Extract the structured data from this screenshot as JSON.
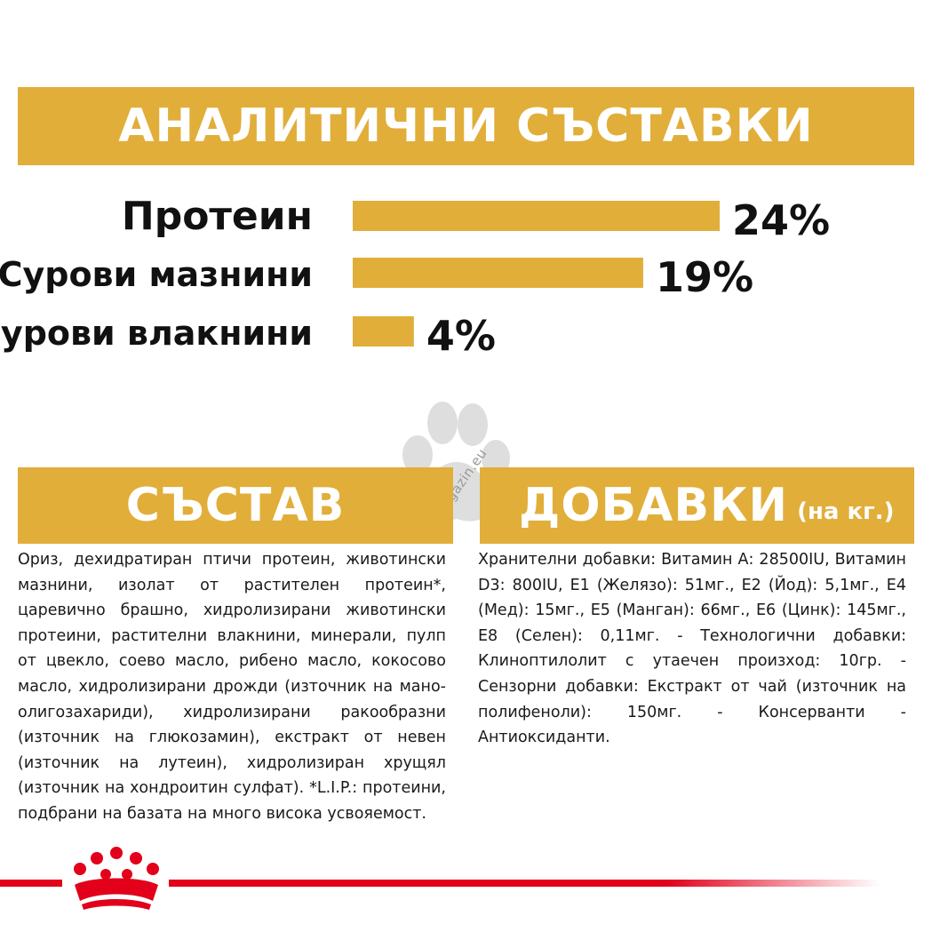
{
  "analytics": {
    "title": "АНАЛИТИЧНИ СЪСТАВКИ"
  },
  "chart_data": {
    "type": "bar",
    "orientation": "horizontal",
    "categories": [
      "Протеин",
      "Сурови мазнини",
      "Сурови влакнини"
    ],
    "values": [
      24,
      19,
      4
    ],
    "value_labels": [
      "24%",
      "19%",
      "4%"
    ],
    "unit": "%",
    "xlim": [
      0,
      24
    ],
    "bar_color": "#e1ae3a",
    "grid": false,
    "legend": "none"
  },
  "composition": {
    "title": "СЪСТАВ",
    "text": "Ориз, дехидратиран птичи протеин, животински мазнини, изолат от растителен протеин*, царевично брашно, хидролизирани животински протеини, растителни влакнини, минерали, пулп от цвекло, соево масло, рибено масло, кокосово масло, хидролизирани дрожди (източник на мано- олигозахариди), хидролизирани ракообразни (източник на глюкозамин), екстракт от невен (източник на лутеин), хидролизиран хрущял (източник на хондроитин сулфат). *L.I.P.: протеини, подбрани на базата на много висока усвояемост."
  },
  "additives": {
    "title": "ДОБАВКИ",
    "unit_label": "(на кг.)",
    "text": "Хранителни добавки: Витамин А: 28500IU, Витамин D3: 800IU, Е1 (Желязо): 51мг., Е2 (Йод): 5,1мг., Е4 (Мед): 15мг., Е5 (Манган): 66мг., Е6 (Цинк): 145мг., Е8 (Селен): 0,11мг. - Технологични добавки: Клиноптилолит с утаечен произход: 10гр. - Сензорни добавки: Екстракт от чай (източник на полифеноли): 150мг. - Консерванти - Антиоксиданти."
  },
  "watermark": {
    "text": "zoomagazin.eu",
    "icon": "paw-icon"
  },
  "brand": {
    "icon": "royal-canin-crown-icon",
    "color": "#e2001a"
  },
  "colors": {
    "accent": "#e1ae3a",
    "text": "#1a1a1a",
    "brand_red": "#e2001a"
  }
}
